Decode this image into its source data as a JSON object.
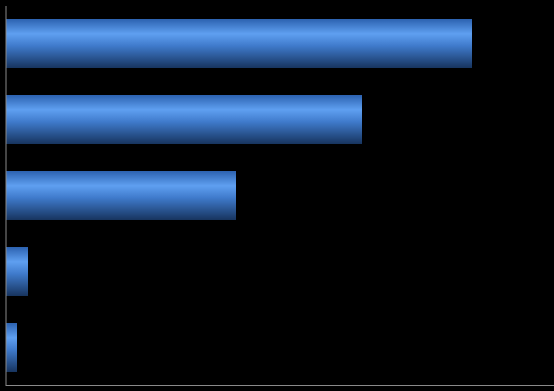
{
  "chart_data": {
    "type": "hbar",
    "categories": [
      null,
      null,
      null,
      null,
      null
    ],
    "values": [
      466,
      356,
      230,
      22,
      11
    ],
    "color": "#4a86d6",
    "xlim": [
      0,
      548
    ]
  }
}
